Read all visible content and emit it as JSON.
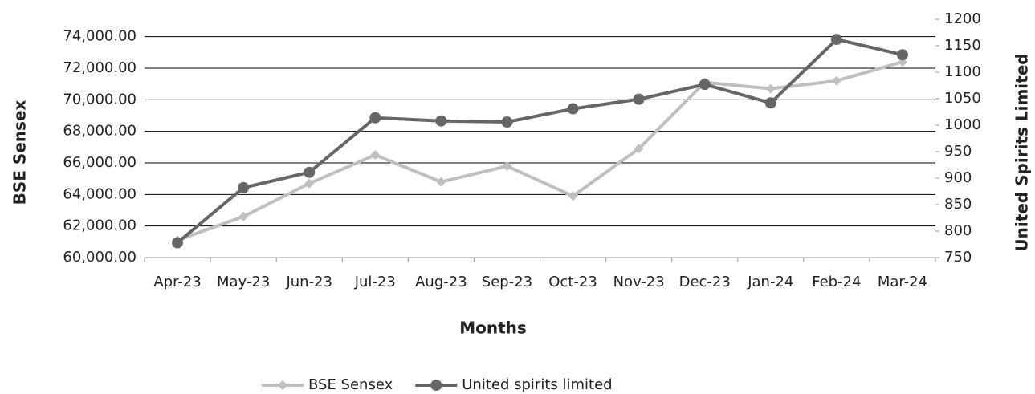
{
  "chart_data": {
    "type": "line",
    "x_label": "Months",
    "y_label": "BSE Sensex",
    "y2_label": "United Spirits Limited",
    "categories": [
      "Apr-23",
      "May-23",
      "Jun-23",
      "Jul-23",
      "Aug-23",
      "Sep-23",
      "Oct-23",
      "Nov-23",
      "Dec-23",
      "Jan-24",
      "Feb-24",
      "Mar-24"
    ],
    "series": [
      {
        "name": "BSE Sensex",
        "color": "#bfbfbf",
        "marker": "diamond",
        "values": [
          61100,
          62600,
          64700,
          66500,
          64800,
          65800,
          63900,
          66900,
          71100,
          70700,
          71200,
          72400
        ]
      },
      {
        "name": "United spirits limited",
        "color": "#666666",
        "marker": "circle",
        "axis": "y2",
        "values": [
          778,
          882,
          911,
          1014,
          1008,
          1006,
          1031,
          1049,
          1077,
          1042,
          1162,
          1133
        ]
      }
    ],
    "ylim": [
      60000,
      75000
    ],
    "yticks": [
      {
        "value": 60000,
        "label": "60,000.00"
      },
      {
        "value": 62000,
        "label": "62,000.00"
      },
      {
        "value": 64000,
        "label": "64,000.00"
      },
      {
        "value": 66000,
        "label": "66,000.00"
      },
      {
        "value": 68000,
        "label": "68,000.00"
      },
      {
        "value": 70000,
        "label": "70,000.00"
      },
      {
        "value": 72000,
        "label": "72,000.00"
      },
      {
        "value": 74000,
        "label": "74,000.00"
      }
    ],
    "y2lim": [
      750,
      1200
    ],
    "y2ticks": [
      750,
      800,
      850,
      900,
      950,
      1000,
      1050,
      1100,
      1150,
      1200
    ],
    "grid": true,
    "legend": "bottom"
  }
}
